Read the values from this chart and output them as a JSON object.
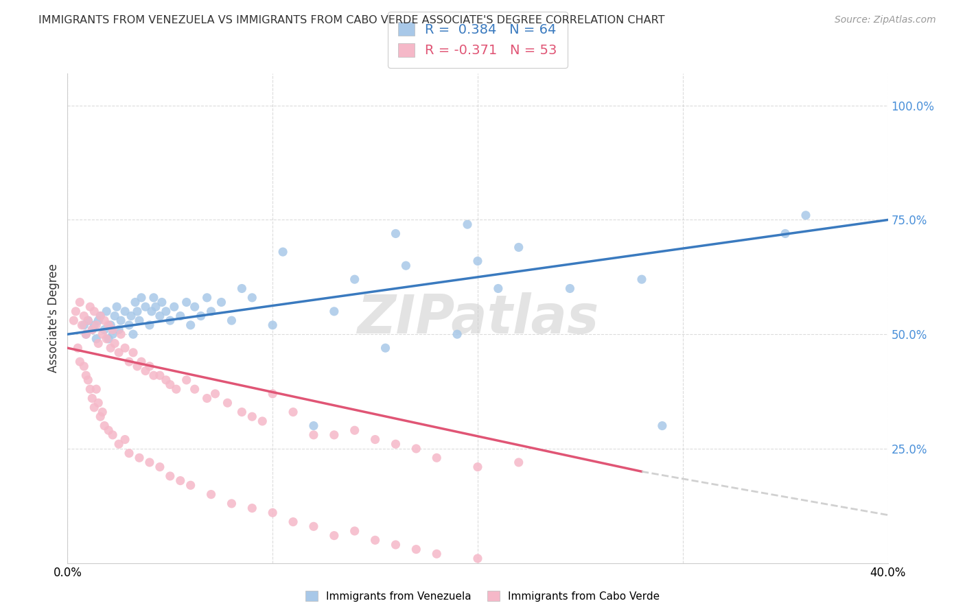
{
  "title": "IMMIGRANTS FROM VENEZUELA VS IMMIGRANTS FROM CABO VERDE ASSOCIATE'S DEGREE CORRELATION CHART",
  "source": "Source: ZipAtlas.com",
  "ylabel": "Associate's Degree",
  "ytick_labels": [
    "25.0%",
    "50.0%",
    "75.0%",
    "100.0%"
  ],
  "ytick_values": [
    25.0,
    50.0,
    75.0,
    100.0
  ],
  "xmin": 0.0,
  "xmax": 40.0,
  "ymin": 0.0,
  "ymax": 107.0,
  "legend1_text": "R =  0.384   N = 64",
  "legend2_text": "R = -0.371   N = 53",
  "blue_scatter_color": "#a8c8e8",
  "pink_scatter_color": "#f5b8c8",
  "blue_line_color": "#3a7abf",
  "pink_line_color": "#e05575",
  "watermark": "ZIPatlas",
  "venezuela_points_x": [
    0.8,
    0.9,
    1.0,
    1.2,
    1.3,
    1.4,
    1.5,
    1.6,
    1.8,
    1.9,
    2.0,
    2.1,
    2.2,
    2.3,
    2.4,
    2.5,
    2.6,
    2.8,
    3.0,
    3.1,
    3.2,
    3.3,
    3.4,
    3.5,
    3.6,
    3.8,
    4.0,
    4.1,
    4.2,
    4.3,
    4.5,
    4.6,
    4.8,
    5.0,
    5.2,
    5.5,
    5.8,
    6.0,
    6.2,
    6.5,
    6.8,
    7.0,
    7.5,
    8.0,
    8.5,
    9.0,
    10.0,
    10.5,
    12.0,
    13.0,
    14.0,
    15.5,
    16.0,
    16.5,
    19.0,
    19.5,
    20.0,
    21.0,
    22.0,
    24.5,
    28.0,
    29.0,
    35.0,
    36.0
  ],
  "venezuela_points_y": [
    52,
    50,
    53,
    51,
    52,
    49,
    53,
    54,
    51,
    55,
    49,
    52,
    50,
    54,
    56,
    51,
    53,
    55,
    52,
    54,
    50,
    57,
    55,
    53,
    58,
    56,
    52,
    55,
    58,
    56,
    54,
    57,
    55,
    53,
    56,
    54,
    57,
    52,
    56,
    54,
    58,
    55,
    57,
    53,
    60,
    58,
    52,
    68,
    30,
    55,
    62,
    47,
    72,
    65,
    50,
    74,
    66,
    60,
    69,
    60,
    62,
    30,
    72,
    76
  ],
  "caboverde_points_x": [
    0.3,
    0.4,
    0.6,
    0.7,
    0.8,
    0.9,
    1.0,
    1.1,
    1.2,
    1.3,
    1.4,
    1.5,
    1.6,
    1.7,
    1.8,
    1.9,
    2.0,
    2.1,
    2.2,
    2.3,
    2.5,
    2.6,
    2.8,
    3.0,
    3.2,
    3.4,
    3.6,
    3.8,
    4.0,
    4.2,
    4.5,
    4.8,
    5.0,
    5.3,
    5.8,
    6.2,
    6.8,
    7.2,
    7.8,
    8.5,
    9.0,
    9.5,
    10.0,
    11.0,
    12.0,
    13.0,
    14.0,
    15.0,
    16.0,
    17.0,
    18.0,
    20.0,
    22.0
  ],
  "caboverde_points_y": [
    53,
    55,
    57,
    52,
    54,
    50,
    53,
    56,
    51,
    55,
    52,
    48,
    54,
    50,
    53,
    49,
    52,
    47,
    51,
    48,
    46,
    50,
    47,
    44,
    46,
    43,
    44,
    42,
    43,
    41,
    41,
    40,
    39,
    38,
    40,
    38,
    36,
    37,
    35,
    33,
    32,
    31,
    37,
    33,
    28,
    28,
    29,
    27,
    26,
    25,
    23,
    21,
    22
  ],
  "caboverde_extra_low_x": [
    0.5,
    0.6,
    0.8,
    0.9,
    1.0,
    1.1,
    1.2,
    1.3,
    1.4,
    1.5,
    1.6,
    1.7,
    1.8,
    2.0,
    2.2,
    2.5,
    2.8,
    3.0,
    3.5,
    4.0,
    4.5,
    5.0,
    5.5,
    6.0,
    7.0,
    8.0,
    9.0,
    10.0,
    11.0,
    12.0,
    13.0,
    14.0,
    15.0,
    16.0,
    17.0,
    18.0,
    20.0
  ],
  "caboverde_extra_low_y": [
    47,
    44,
    43,
    41,
    40,
    38,
    36,
    34,
    38,
    35,
    32,
    33,
    30,
    29,
    28,
    26,
    27,
    24,
    23,
    22,
    21,
    19,
    18,
    17,
    15,
    13,
    12,
    11,
    9,
    8,
    6,
    7,
    5,
    4,
    3,
    2,
    1
  ]
}
